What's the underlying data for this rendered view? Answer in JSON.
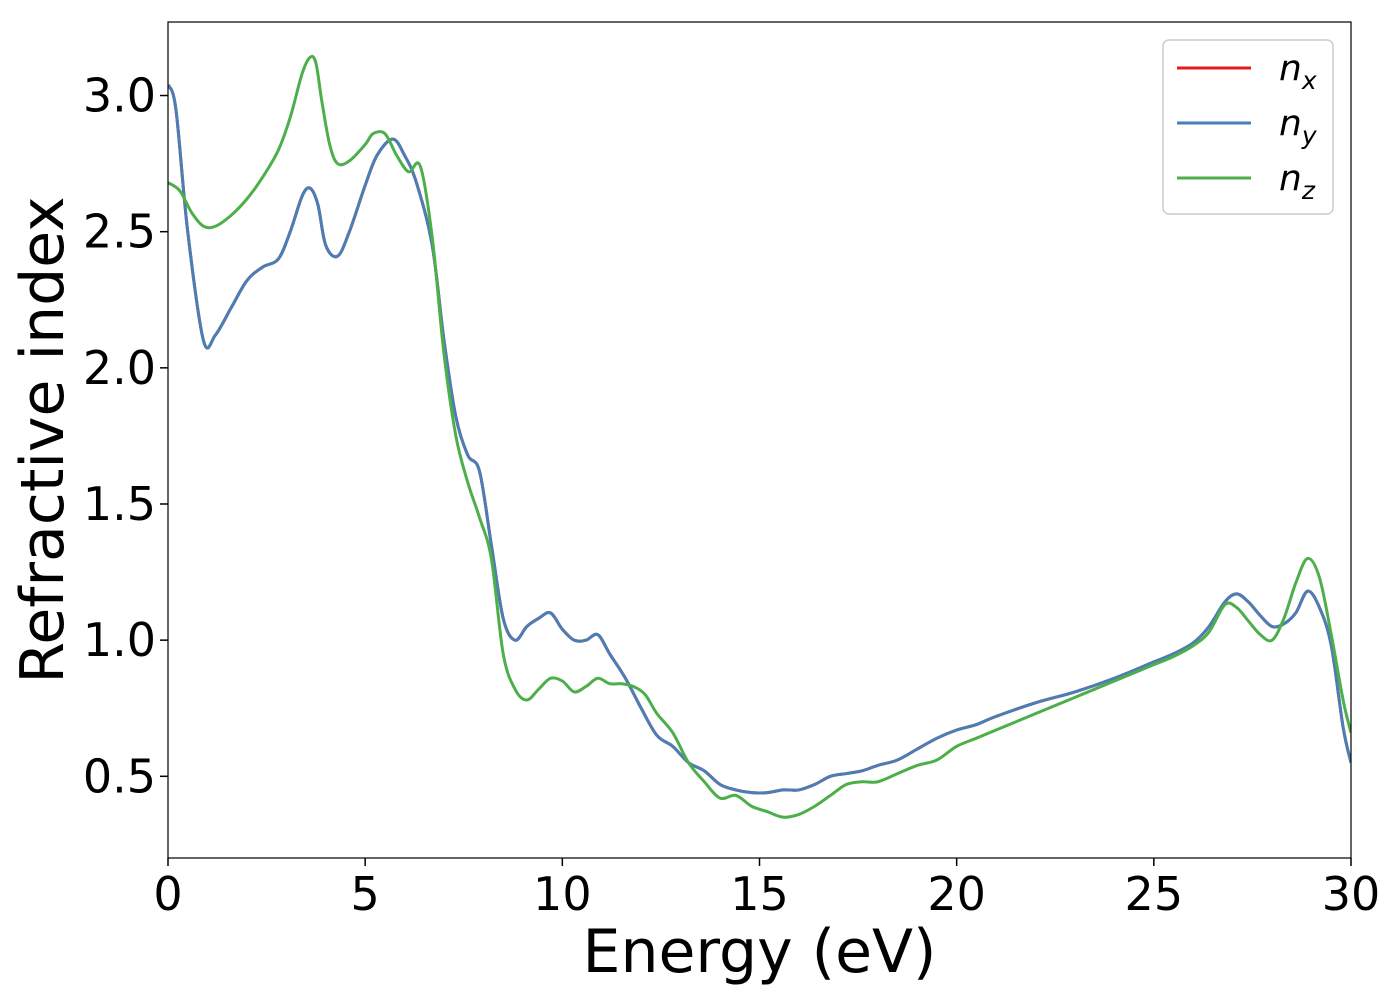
{
  "chart_data": {
    "type": "line",
    "title": "",
    "xlabel": "Energy (eV)",
    "ylabel": "Refractive index",
    "xlim": [
      0,
      30
    ],
    "ylim": [
      0.2,
      3.27
    ],
    "xticks": [
      0,
      5,
      10,
      15,
      20,
      25,
      30
    ],
    "yticks": [
      0.5,
      1.0,
      1.5,
      2.0,
      2.5,
      3.0
    ],
    "xtick_labels": [
      "0",
      "5",
      "10",
      "15",
      "20",
      "25",
      "30"
    ],
    "ytick_labels": [
      "0.5",
      "1.0",
      "1.5",
      "2.0",
      "2.5",
      "3.0"
    ],
    "grid": false,
    "legend_placement": "top-right",
    "series": [
      {
        "name": "n_x",
        "legend_base": "n",
        "legend_sub": "x",
        "color": "#e41a1c",
        "x": [
          0,
          0.2,
          0.5,
          0.9,
          1.2,
          1.6,
          2.0,
          2.4,
          2.8,
          3.1,
          3.4,
          3.6,
          3.8,
          4.0,
          4.3,
          4.6,
          5.0,
          5.3,
          5.7,
          6.0,
          6.3,
          6.7,
          7.0,
          7.3,
          7.6,
          7.9,
          8.2,
          8.5,
          8.8,
          9.1,
          9.4,
          9.7,
          10.0,
          10.3,
          10.6,
          10.9,
          11.2,
          11.6,
          12.0,
          12.4,
          12.8,
          13.2,
          13.6,
          14.0,
          14.4,
          14.8,
          15.2,
          15.6,
          16.0,
          16.4,
          16.8,
          17.2,
          17.6,
          18.0,
          18.5,
          19.0,
          19.5,
          20.0,
          20.5,
          21.0,
          22.0,
          23.0,
          24.0,
          25.0,
          25.5,
          26.0,
          26.4,
          26.8,
          27.1,
          27.4,
          27.7,
          28.0,
          28.3,
          28.6,
          28.9,
          29.2,
          29.5,
          29.8,
          30.0
        ],
        "y": [
          3.04,
          2.95,
          2.5,
          2.1,
          2.12,
          2.22,
          2.32,
          2.37,
          2.4,
          2.5,
          2.63,
          2.66,
          2.6,
          2.45,
          2.41,
          2.5,
          2.67,
          2.78,
          2.84,
          2.78,
          2.68,
          2.45,
          2.1,
          1.82,
          1.68,
          1.62,
          1.35,
          1.08,
          1.0,
          1.05,
          1.08,
          1.1,
          1.04,
          1.0,
          1.0,
          1.02,
          0.95,
          0.86,
          0.75,
          0.65,
          0.61,
          0.55,
          0.52,
          0.47,
          0.45,
          0.44,
          0.44,
          0.45,
          0.45,
          0.47,
          0.5,
          0.51,
          0.52,
          0.54,
          0.56,
          0.6,
          0.64,
          0.67,
          0.69,
          0.72,
          0.77,
          0.81,
          0.86,
          0.92,
          0.95,
          0.99,
          1.05,
          1.14,
          1.17,
          1.14,
          1.09,
          1.05,
          1.06,
          1.1,
          1.18,
          1.12,
          0.98,
          0.68,
          0.55
        ]
      },
      {
        "name": "n_y",
        "legend_base": "n",
        "legend_sub": "y",
        "color": "#4a7fb5",
        "x": [
          0,
          0.2,
          0.5,
          0.9,
          1.2,
          1.6,
          2.0,
          2.4,
          2.8,
          3.1,
          3.4,
          3.6,
          3.8,
          4.0,
          4.3,
          4.6,
          5.0,
          5.3,
          5.7,
          6.0,
          6.3,
          6.7,
          7.0,
          7.3,
          7.6,
          7.9,
          8.2,
          8.5,
          8.8,
          9.1,
          9.4,
          9.7,
          10.0,
          10.3,
          10.6,
          10.9,
          11.2,
          11.6,
          12.0,
          12.4,
          12.8,
          13.2,
          13.6,
          14.0,
          14.4,
          14.8,
          15.2,
          15.6,
          16.0,
          16.4,
          16.8,
          17.2,
          17.6,
          18.0,
          18.5,
          19.0,
          19.5,
          20.0,
          20.5,
          21.0,
          22.0,
          23.0,
          24.0,
          25.0,
          25.5,
          26.0,
          26.4,
          26.8,
          27.1,
          27.4,
          27.7,
          28.0,
          28.3,
          28.6,
          28.9,
          29.2,
          29.5,
          29.8,
          30.0
        ],
        "y": [
          3.04,
          2.95,
          2.5,
          2.1,
          2.12,
          2.22,
          2.32,
          2.37,
          2.4,
          2.5,
          2.63,
          2.66,
          2.6,
          2.45,
          2.41,
          2.5,
          2.67,
          2.78,
          2.84,
          2.78,
          2.68,
          2.45,
          2.1,
          1.82,
          1.68,
          1.62,
          1.35,
          1.08,
          1.0,
          1.05,
          1.08,
          1.1,
          1.04,
          1.0,
          1.0,
          1.02,
          0.95,
          0.86,
          0.75,
          0.65,
          0.61,
          0.55,
          0.52,
          0.47,
          0.45,
          0.44,
          0.44,
          0.45,
          0.45,
          0.47,
          0.5,
          0.51,
          0.52,
          0.54,
          0.56,
          0.6,
          0.64,
          0.67,
          0.69,
          0.72,
          0.77,
          0.81,
          0.86,
          0.92,
          0.95,
          0.99,
          1.05,
          1.14,
          1.17,
          1.14,
          1.09,
          1.05,
          1.06,
          1.1,
          1.18,
          1.12,
          0.98,
          0.68,
          0.55
        ]
      },
      {
        "name": "n_z",
        "legend_base": "n",
        "legend_sub": "z",
        "color": "#4daf4a",
        "x": [
          0,
          0.3,
          0.6,
          0.9,
          1.2,
          1.6,
          2.0,
          2.4,
          2.8,
          3.1,
          3.4,
          3.6,
          3.75,
          3.9,
          4.1,
          4.3,
          4.6,
          5.0,
          5.2,
          5.5,
          5.8,
          6.1,
          6.4,
          6.7,
          7.0,
          7.3,
          7.6,
          7.9,
          8.2,
          8.5,
          8.8,
          9.1,
          9.4,
          9.7,
          10.0,
          10.3,
          10.6,
          10.9,
          11.2,
          11.5,
          11.8,
          12.1,
          12.4,
          12.8,
          13.2,
          13.6,
          14.0,
          14.4,
          14.8,
          15.2,
          15.6,
          16.0,
          16.4,
          16.8,
          17.2,
          17.6,
          18.0,
          18.5,
          19.0,
          19.5,
          20.0,
          20.5,
          21.0,
          22.0,
          23.0,
          24.0,
          25.0,
          25.5,
          26.0,
          26.4,
          26.8,
          27.1,
          27.4,
          27.7,
          28.0,
          28.3,
          28.6,
          28.9,
          29.2,
          29.5,
          29.8,
          30.0
        ],
        "y": [
          2.68,
          2.65,
          2.57,
          2.52,
          2.52,
          2.56,
          2.62,
          2.7,
          2.8,
          2.92,
          3.08,
          3.14,
          3.12,
          2.98,
          2.82,
          2.75,
          2.76,
          2.82,
          2.86,
          2.86,
          2.78,
          2.72,
          2.74,
          2.48,
          2.05,
          1.75,
          1.58,
          1.45,
          1.3,
          0.95,
          0.82,
          0.78,
          0.82,
          0.86,
          0.85,
          0.81,
          0.83,
          0.86,
          0.84,
          0.84,
          0.83,
          0.8,
          0.73,
          0.66,
          0.55,
          0.48,
          0.42,
          0.43,
          0.39,
          0.37,
          0.35,
          0.36,
          0.39,
          0.43,
          0.47,
          0.48,
          0.48,
          0.51,
          0.54,
          0.56,
          0.61,
          0.64,
          0.67,
          0.73,
          0.79,
          0.85,
          0.91,
          0.94,
          0.98,
          1.03,
          1.13,
          1.12,
          1.07,
          1.02,
          1.0,
          1.08,
          1.21,
          1.3,
          1.23,
          1.02,
          0.78,
          0.66
        ]
      }
    ]
  }
}
